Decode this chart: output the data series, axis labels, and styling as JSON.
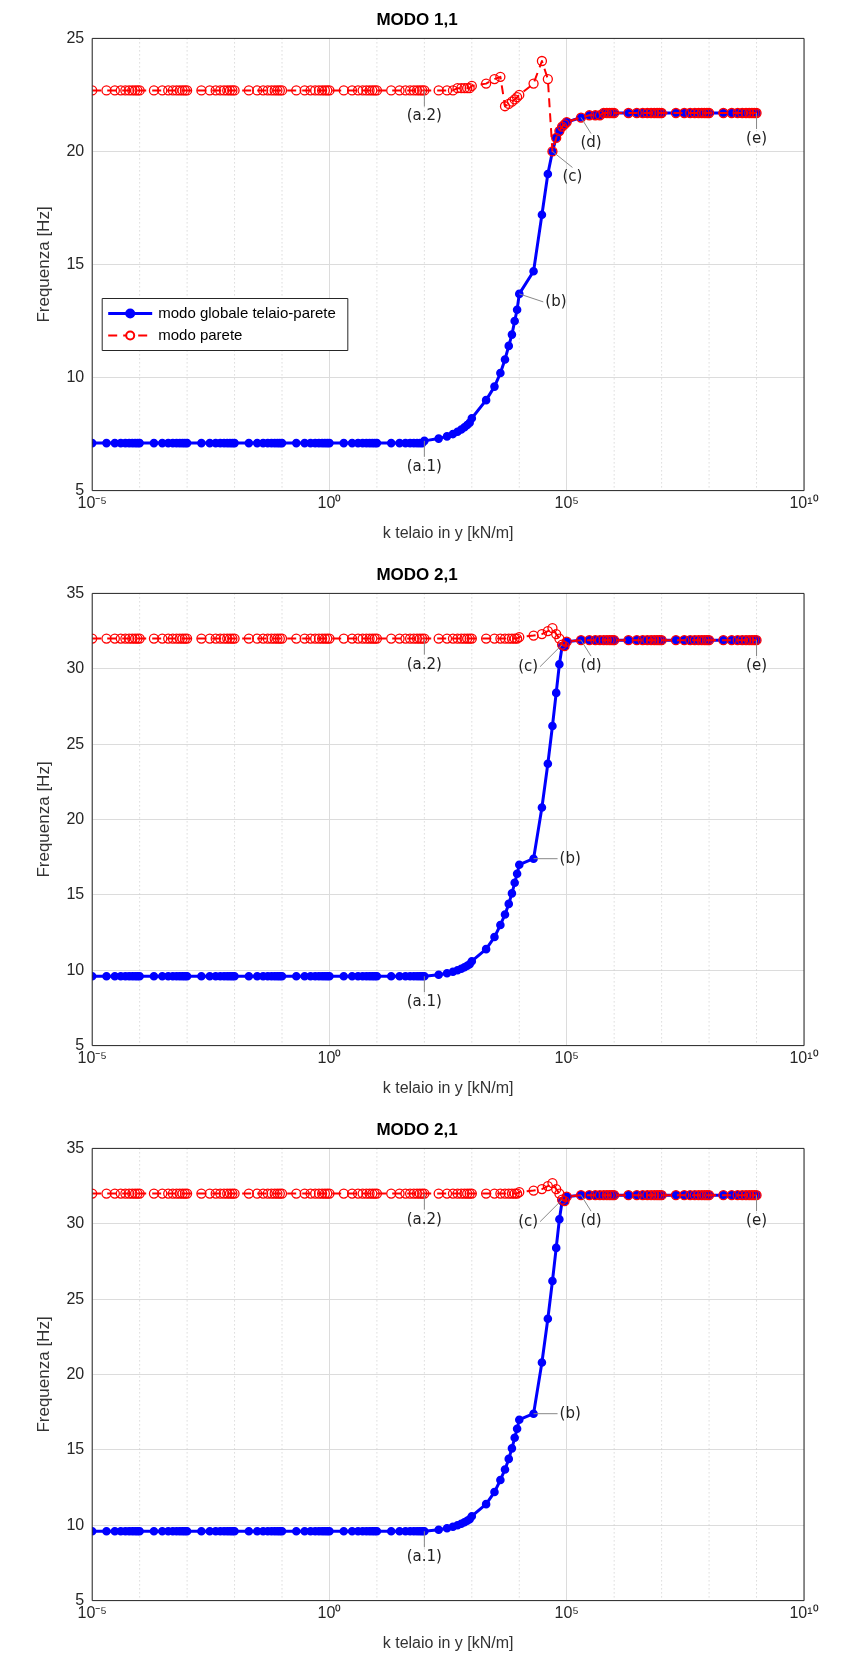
{
  "chart_data": [
    {
      "type": "line",
      "title": "MODO 1,1",
      "xlabel": "k telaio in y [kN/m]",
      "ylabel": "Frequenza [Hz]",
      "log": "x",
      "grid": true,
      "legend": "left",
      "marker": "circle",
      "xlim": [
        1e-05,
        10000000000.0
      ],
      "ylim": [
        5,
        25
      ],
      "xticks": [
        {
          "value": 1e-05,
          "label": "10⁻⁵"
        },
        {
          "value": 0.0001,
          "label": null
        },
        {
          "value": 0.001,
          "label": null
        },
        {
          "value": 0.01,
          "label": null
        },
        {
          "value": 0.1,
          "label": null
        },
        {
          "value": 1,
          "label": "10⁰"
        },
        {
          "value": 10.0,
          "label": null
        },
        {
          "value": 100.0,
          "label": null
        },
        {
          "value": 1000.0,
          "label": null
        },
        {
          "value": 10000.0,
          "label": null
        },
        {
          "value": 100000.0,
          "label": "10⁵"
        },
        {
          "value": 1000000.0,
          "label": null
        },
        {
          "value": 10000000.0,
          "label": null
        },
        {
          "value": 100000000.0,
          "label": null
        },
        {
          "value": 1000000000.0,
          "label": null
        },
        {
          "value": 10000000000.0,
          "label": "10¹⁰"
        }
      ],
      "yticks": [
        5,
        10,
        15,
        20,
        25
      ],
      "x": [
        1e-05,
        2e-05,
        3e-05,
        4e-05,
        5e-05,
        6e-05,
        7e-05,
        8e-05,
        9e-05,
        0.0001,
        0.0002,
        0.0003,
        0.0004,
        0.0005,
        0.0006,
        0.0007,
        0.0008,
        0.0009,
        0.001,
        0.002,
        0.003,
        0.004,
        0.005,
        0.006,
        0.007,
        0.008,
        0.009,
        0.01,
        0.02,
        0.03,
        0.04,
        0.05,
        0.06,
        0.07,
        0.08,
        0.09,
        0.1,
        0.2,
        0.3,
        0.4,
        0.5,
        0.6,
        0.7,
        0.8,
        0.9,
        1,
        2,
        3,
        4,
        5,
        6,
        7,
        8,
        9,
        10,
        20,
        30,
        40,
        50,
        60,
        70,
        80,
        90,
        100,
        200,
        300,
        400,
        500,
        600,
        700,
        800,
        900,
        1000.0,
        2000.0,
        3000.0,
        4000.0,
        5000.0,
        6000.0,
        7000.0,
        8000.0,
        9000.0,
        10000.0,
        20000.0,
        30000.0,
        40000.0,
        50000.0,
        60000.0,
        70000.0,
        80000.0,
        90000.0,
        100000.0,
        200000.0,
        300000.0,
        400000.0,
        500000.0,
        600000.0,
        700000.0,
        800000.0,
        900000.0,
        1000000.0,
        2000000.0,
        3000000.0,
        4000000.0,
        5000000.0,
        6000000.0,
        7000000.0,
        8000000.0,
        9000000.0,
        10000000.0,
        20000000.0,
        30000000.0,
        40000000.0,
        50000000.0,
        60000000.0,
        70000000.0,
        80000000.0,
        90000000.0,
        100000000.0,
        200000000.0,
        300000000.0,
        400000000.0,
        500000000.0,
        600000000.0,
        700000000.0,
        800000000.0,
        900000000.0,
        1000000000.0
      ],
      "series": [
        {
          "name": "modo globale telaio-parete",
          "color": "#0000ff",
          "line_style": "solid",
          "values": [
            7.1,
            7.1,
            7.1,
            7.1,
            7.1,
            7.1,
            7.1,
            7.1,
            7.1,
            7.1,
            7.1,
            7.1,
            7.1,
            7.1,
            7.1,
            7.1,
            7.1,
            7.1,
            7.1,
            7.1,
            7.1,
            7.1,
            7.1,
            7.1,
            7.1,
            7.1,
            7.1,
            7.1,
            7.1,
            7.1,
            7.1,
            7.1,
            7.1,
            7.1,
            7.1,
            7.1,
            7.1,
            7.1,
            7.1,
            7.1,
            7.1,
            7.1,
            7.1,
            7.1,
            7.1,
            7.1,
            7.1,
            7.1,
            7.1,
            7.1,
            7.1,
            7.1,
            7.1,
            7.1,
            7.1,
            7.1,
            7.1,
            7.1,
            7.1,
            7.1,
            7.1,
            7.1,
            7.1,
            7.2,
            7.3,
            7.4,
            7.5,
            7.6,
            7.7,
            7.8,
            7.9,
            8.0,
            8.2,
            9.0,
            9.6,
            10.2,
            10.8,
            11.4,
            11.9,
            12.5,
            13.0,
            13.7,
            14.7,
            17.2,
            19.0,
            20.0,
            20.6,
            20.9,
            21.1,
            21.2,
            21.3,
            21.5,
            21.6,
            21.6,
            21.6,
            21.7,
            21.7,
            21.7,
            21.7,
            21.7,
            21.7,
            21.7,
            21.7,
            21.7,
            21.7,
            21.7,
            21.7,
            21.7,
            21.7,
            21.7,
            21.7,
            21.7,
            21.7,
            21.7,
            21.7,
            21.7,
            21.7,
            21.7,
            21.7,
            21.7,
            21.7,
            21.7,
            21.7,
            21.7,
            21.7,
            21.7,
            21.7
          ]
        },
        {
          "name": "modo parete",
          "color": "#ff0000",
          "line_style": "dashed",
          "values": [
            22.7,
            22.7,
            22.7,
            22.7,
            22.7,
            22.7,
            22.7,
            22.7,
            22.7,
            22.7,
            22.7,
            22.7,
            22.7,
            22.7,
            22.7,
            22.7,
            22.7,
            22.7,
            22.7,
            22.7,
            22.7,
            22.7,
            22.7,
            22.7,
            22.7,
            22.7,
            22.7,
            22.7,
            22.7,
            22.7,
            22.7,
            22.7,
            22.7,
            22.7,
            22.7,
            22.7,
            22.7,
            22.7,
            22.7,
            22.7,
            22.7,
            22.7,
            22.7,
            22.7,
            22.7,
            22.7,
            22.7,
            22.7,
            22.7,
            22.7,
            22.7,
            22.7,
            22.7,
            22.7,
            22.7,
            22.7,
            22.7,
            22.7,
            22.7,
            22.7,
            22.7,
            22.7,
            22.7,
            22.7,
            22.7,
            22.7,
            22.7,
            22.8,
            22.8,
            22.8,
            22.8,
            22.8,
            22.9,
            23.0,
            23.2,
            23.3,
            22.0,
            22.1,
            22.2,
            22.3,
            22.4,
            22.5,
            23.0,
            24.0,
            23.2,
            20.0,
            20.6,
            20.9,
            21.1,
            21.2,
            21.3,
            21.5,
            21.6,
            21.6,
            21.6,
            21.7,
            21.7,
            21.7,
            21.7,
            21.7,
            21.7,
            21.7,
            21.7,
            21.7,
            21.7,
            21.7,
            21.7,
            21.7,
            21.7,
            21.7,
            21.7,
            21.7,
            21.7,
            21.7,
            21.7,
            21.7,
            21.7,
            21.7,
            21.7,
            21.7,
            21.7,
            21.7,
            21.7,
            21.7,
            21.7,
            21.7,
            21.7
          ]
        }
      ],
      "annotations": [
        {
          "text": "(a.1)",
          "x": 100,
          "y": 7.2
        },
        {
          "text": "(a.2)",
          "x": 100,
          "y": 22.7
        },
        {
          "text": "(b)",
          "x": 10000.0,
          "y": 13.7
        },
        {
          "text": "(c)",
          "x": 50000.0,
          "y": 20.0
        },
        {
          "text": "(d)",
          "x": 200000.0,
          "y": 21.5
        },
        {
          "text": "(e)",
          "x": 1000000000.0,
          "y": 21.7
        }
      ]
    },
    {
      "type": "line",
      "title": "MODO 2,1",
      "xlabel": "k telaio in y [kN/m]",
      "ylabel": "Frequenza [Hz]",
      "log": "x",
      "grid": true,
      "marker": "circle",
      "xlim": [
        1e-05,
        10000000000.0
      ],
      "ylim": [
        5,
        35
      ],
      "xticks": [
        {
          "value": 1e-05,
          "label": "10⁻⁵"
        },
        {
          "value": 0.0001,
          "label": null
        },
        {
          "value": 0.001,
          "label": null
        },
        {
          "value": 0.01,
          "label": null
        },
        {
          "value": 0.1,
          "label": null
        },
        {
          "value": 1,
          "label": "10⁰"
        },
        {
          "value": 10.0,
          "label": null
        },
        {
          "value": 100.0,
          "label": null
        },
        {
          "value": 1000.0,
          "label": null
        },
        {
          "value": 10000.0,
          "label": null
        },
        {
          "value": 100000.0,
          "label": "10⁵"
        },
        {
          "value": 1000000.0,
          "label": null
        },
        {
          "value": 10000000.0,
          "label": null
        },
        {
          "value": 100000000.0,
          "label": null
        },
        {
          "value": 1000000000.0,
          "label": null
        },
        {
          "value": 10000000000.0,
          "label": "10¹⁰"
        }
      ],
      "yticks": [
        5,
        10,
        15,
        20,
        25,
        30,
        35
      ],
      "x": [
        1e-05,
        2e-05,
        3e-05,
        4e-05,
        5e-05,
        6e-05,
        7e-05,
        8e-05,
        9e-05,
        0.0001,
        0.0002,
        0.0003,
        0.0004,
        0.0005,
        0.0006,
        0.0007,
        0.0008,
        0.0009,
        0.001,
        0.002,
        0.003,
        0.004,
        0.005,
        0.006,
        0.007,
        0.008,
        0.009,
        0.01,
        0.02,
        0.03,
        0.04,
        0.05,
        0.06,
        0.07,
        0.08,
        0.09,
        0.1,
        0.2,
        0.3,
        0.4,
        0.5,
        0.6,
        0.7,
        0.8,
        0.9,
        1,
        2,
        3,
        4,
        5,
        6,
        7,
        8,
        9,
        10,
        20,
        30,
        40,
        50,
        60,
        70,
        80,
        90,
        100,
        200,
        300,
        400,
        500,
        600,
        700,
        800,
        900,
        1000.0,
        2000.0,
        3000.0,
        4000.0,
        5000.0,
        6000.0,
        7000.0,
        8000.0,
        9000.0,
        10000.0,
        20000.0,
        30000.0,
        40000.0,
        50000.0,
        60000.0,
        70000.0,
        80000.0,
        90000.0,
        100000.0,
        200000.0,
        300000.0,
        400000.0,
        500000.0,
        600000.0,
        700000.0,
        800000.0,
        900000.0,
        1000000.0,
        2000000.0,
        3000000.0,
        4000000.0,
        5000000.0,
        6000000.0,
        7000000.0,
        8000000.0,
        9000000.0,
        10000000.0,
        20000000.0,
        30000000.0,
        40000000.0,
        50000000.0,
        60000000.0,
        70000000.0,
        80000000.0,
        90000000.0,
        100000000.0,
        200000000.0,
        300000000.0,
        400000000.0,
        500000000.0,
        600000000.0,
        700000000.0,
        800000000.0,
        900000000.0,
        1000000000.0
      ],
      "series": [
        {
          "color": "#0000ff",
          "line_style": "solid",
          "values": [
            9.6,
            9.6,
            9.6,
            9.6,
            9.6,
            9.6,
            9.6,
            9.6,
            9.6,
            9.6,
            9.6,
            9.6,
            9.6,
            9.6,
            9.6,
            9.6,
            9.6,
            9.6,
            9.6,
            9.6,
            9.6,
            9.6,
            9.6,
            9.6,
            9.6,
            9.6,
            9.6,
            9.6,
            9.6,
            9.6,
            9.6,
            9.6,
            9.6,
            9.6,
            9.6,
            9.6,
            9.6,
            9.6,
            9.6,
            9.6,
            9.6,
            9.6,
            9.6,
            9.6,
            9.6,
            9.6,
            9.6,
            9.6,
            9.6,
            9.6,
            9.6,
            9.6,
            9.6,
            9.6,
            9.6,
            9.6,
            9.6,
            9.6,
            9.6,
            9.6,
            9.6,
            9.6,
            9.6,
            9.6,
            9.7,
            9.8,
            9.9,
            10.0,
            10.1,
            10.2,
            10.3,
            10.4,
            10.6,
            11.4,
            12.2,
            13.0,
            13.7,
            14.4,
            15.1,
            15.8,
            16.4,
            17.0,
            17.4,
            20.8,
            23.7,
            26.2,
            28.4,
            30.3,
            31.5,
            31.5,
            31.8,
            31.9,
            31.9,
            31.9,
            31.9,
            31.9,
            31.9,
            31.9,
            31.9,
            31.9,
            31.9,
            31.9,
            31.9,
            31.9,
            31.9,
            31.9,
            31.9,
            31.9,
            31.9,
            31.9,
            31.9,
            31.9,
            31.9,
            31.9,
            31.9,
            31.9,
            31.9,
            31.9,
            31.9,
            31.9,
            31.9,
            31.9,
            31.9,
            31.9,
            31.9,
            31.9,
            31.9
          ]
        },
        {
          "color": "#ff0000",
          "line_style": "dashed",
          "values": [
            32.0,
            32.0,
            32.0,
            32.0,
            32.0,
            32.0,
            32.0,
            32.0,
            32.0,
            32.0,
            32.0,
            32.0,
            32.0,
            32.0,
            32.0,
            32.0,
            32.0,
            32.0,
            32.0,
            32.0,
            32.0,
            32.0,
            32.0,
            32.0,
            32.0,
            32.0,
            32.0,
            32.0,
            32.0,
            32.0,
            32.0,
            32.0,
            32.0,
            32.0,
            32.0,
            32.0,
            32.0,
            32.0,
            32.0,
            32.0,
            32.0,
            32.0,
            32.0,
            32.0,
            32.0,
            32.0,
            32.0,
            32.0,
            32.0,
            32.0,
            32.0,
            32.0,
            32.0,
            32.0,
            32.0,
            32.0,
            32.0,
            32.0,
            32.0,
            32.0,
            32.0,
            32.0,
            32.0,
            32.0,
            32.0,
            32.0,
            32.0,
            32.0,
            32.0,
            32.0,
            32.0,
            32.0,
            32.0,
            32.0,
            32.0,
            32.0,
            32.0,
            32.0,
            32.0,
            32.0,
            32.0,
            32.1,
            32.2,
            32.3,
            32.5,
            32.7,
            32.3,
            32.0,
            31.6,
            31.5,
            31.8,
            31.9,
            31.9,
            31.9,
            31.9,
            31.9,
            31.9,
            31.9,
            31.9,
            31.9,
            31.9,
            31.9,
            31.9,
            31.9,
            31.9,
            31.9,
            31.9,
            31.9,
            31.9,
            31.9,
            31.9,
            31.9,
            31.9,
            31.9,
            31.9,
            31.9,
            31.9,
            31.9,
            31.9,
            31.9,
            31.9,
            31.9,
            31.9,
            31.9,
            31.9,
            31.9,
            31.9
          ]
        }
      ],
      "annotations": [
        {
          "text": "(a.1)",
          "x": 100,
          "y": 9.6
        },
        {
          "text": "(a.2)",
          "x": 100,
          "y": 32.0
        },
        {
          "text": "(b)",
          "x": 20000.0,
          "y": 17.4
        },
        {
          "text": "(c)",
          "x": 80000.0,
          "y": 31.6
        },
        {
          "text": "(d)",
          "x": 200000.0,
          "y": 31.9
        },
        {
          "text": "(e)",
          "x": 1000000000.0,
          "y": 31.9
        }
      ]
    },
    {
      "type": "line",
      "title": "MODO 2,1",
      "xlabel": "k telaio in y [kN/m]",
      "ylabel": "Frequenza [Hz]",
      "log": "x",
      "grid": true,
      "marker": "circle",
      "xlim": [
        1e-05,
        10000000000.0
      ],
      "ylim": [
        5,
        35
      ],
      "xticks": [
        {
          "value": 1e-05,
          "label": "10⁻⁵"
        },
        {
          "value": 0.0001,
          "label": null
        },
        {
          "value": 0.001,
          "label": null
        },
        {
          "value": 0.01,
          "label": null
        },
        {
          "value": 0.1,
          "label": null
        },
        {
          "value": 1,
          "label": "10⁰"
        },
        {
          "value": 10.0,
          "label": null
        },
        {
          "value": 100.0,
          "label": null
        },
        {
          "value": 1000.0,
          "label": null
        },
        {
          "value": 10000.0,
          "label": null
        },
        {
          "value": 100000.0,
          "label": "10⁵"
        },
        {
          "value": 1000000.0,
          "label": null
        },
        {
          "value": 10000000.0,
          "label": null
        },
        {
          "value": 100000000.0,
          "label": null
        },
        {
          "value": 1000000000.0,
          "label": null
        },
        {
          "value": 10000000000.0,
          "label": "10¹⁰"
        }
      ],
      "yticks": [
        5,
        10,
        15,
        20,
        25,
        30,
        35
      ],
      "x": [
        1e-05,
        2e-05,
        3e-05,
        4e-05,
        5e-05,
        6e-05,
        7e-05,
        8e-05,
        9e-05,
        0.0001,
        0.0002,
        0.0003,
        0.0004,
        0.0005,
        0.0006,
        0.0007,
        0.0008,
        0.0009,
        0.001,
        0.002,
        0.003,
        0.004,
        0.005,
        0.006,
        0.007,
        0.008,
        0.009,
        0.01,
        0.02,
        0.03,
        0.04,
        0.05,
        0.06,
        0.07,
        0.08,
        0.09,
        0.1,
        0.2,
        0.3,
        0.4,
        0.5,
        0.6,
        0.7,
        0.8,
        0.9,
        1,
        2,
        3,
        4,
        5,
        6,
        7,
        8,
        9,
        10,
        20,
        30,
        40,
        50,
        60,
        70,
        80,
        90,
        100,
        200,
        300,
        400,
        500,
        600,
        700,
        800,
        900,
        1000.0,
        2000.0,
        3000.0,
        4000.0,
        5000.0,
        6000.0,
        7000.0,
        8000.0,
        9000.0,
        10000.0,
        20000.0,
        30000.0,
        40000.0,
        50000.0,
        60000.0,
        70000.0,
        80000.0,
        90000.0,
        100000.0,
        200000.0,
        300000.0,
        400000.0,
        500000.0,
        600000.0,
        700000.0,
        800000.0,
        900000.0,
        1000000.0,
        2000000.0,
        3000000.0,
        4000000.0,
        5000000.0,
        6000000.0,
        7000000.0,
        8000000.0,
        9000000.0,
        10000000.0,
        20000000.0,
        30000000.0,
        40000000.0,
        50000000.0,
        60000000.0,
        70000000.0,
        80000000.0,
        90000000.0,
        100000000.0,
        200000000.0,
        300000000.0,
        400000000.0,
        500000000.0,
        600000000.0,
        700000000.0,
        800000000.0,
        900000000.0,
        1000000000.0
      ],
      "series": [
        {
          "color": "#0000ff",
          "line_style": "solid",
          "values": [
            9.6,
            9.6,
            9.6,
            9.6,
            9.6,
            9.6,
            9.6,
            9.6,
            9.6,
            9.6,
            9.6,
            9.6,
            9.6,
            9.6,
            9.6,
            9.6,
            9.6,
            9.6,
            9.6,
            9.6,
            9.6,
            9.6,
            9.6,
            9.6,
            9.6,
            9.6,
            9.6,
            9.6,
            9.6,
            9.6,
            9.6,
            9.6,
            9.6,
            9.6,
            9.6,
            9.6,
            9.6,
            9.6,
            9.6,
            9.6,
            9.6,
            9.6,
            9.6,
            9.6,
            9.6,
            9.6,
            9.6,
            9.6,
            9.6,
            9.6,
            9.6,
            9.6,
            9.6,
            9.6,
            9.6,
            9.6,
            9.6,
            9.6,
            9.6,
            9.6,
            9.6,
            9.6,
            9.6,
            9.6,
            9.7,
            9.8,
            9.9,
            10.0,
            10.1,
            10.2,
            10.3,
            10.4,
            10.6,
            11.4,
            12.2,
            13.0,
            13.7,
            14.4,
            15.1,
            15.8,
            16.4,
            17.0,
            17.4,
            20.8,
            23.7,
            26.2,
            28.4,
            30.3,
            31.5,
            31.5,
            31.8,
            31.9,
            31.9,
            31.9,
            31.9,
            31.9,
            31.9,
            31.9,
            31.9,
            31.9,
            31.9,
            31.9,
            31.9,
            31.9,
            31.9,
            31.9,
            31.9,
            31.9,
            31.9,
            31.9,
            31.9,
            31.9,
            31.9,
            31.9,
            31.9,
            31.9,
            31.9,
            31.9,
            31.9,
            31.9,
            31.9,
            31.9,
            31.9,
            31.9,
            31.9,
            31.9,
            31.9
          ]
        },
        {
          "color": "#ff0000",
          "line_style": "dashed",
          "values": [
            32.0,
            32.0,
            32.0,
            32.0,
            32.0,
            32.0,
            32.0,
            32.0,
            32.0,
            32.0,
            32.0,
            32.0,
            32.0,
            32.0,
            32.0,
            32.0,
            32.0,
            32.0,
            32.0,
            32.0,
            32.0,
            32.0,
            32.0,
            32.0,
            32.0,
            32.0,
            32.0,
            32.0,
            32.0,
            32.0,
            32.0,
            32.0,
            32.0,
            32.0,
            32.0,
            32.0,
            32.0,
            32.0,
            32.0,
            32.0,
            32.0,
            32.0,
            32.0,
            32.0,
            32.0,
            32.0,
            32.0,
            32.0,
            32.0,
            32.0,
            32.0,
            32.0,
            32.0,
            32.0,
            32.0,
            32.0,
            32.0,
            32.0,
            32.0,
            32.0,
            32.0,
            32.0,
            32.0,
            32.0,
            32.0,
            32.0,
            32.0,
            32.0,
            32.0,
            32.0,
            32.0,
            32.0,
            32.0,
            32.0,
            32.0,
            32.0,
            32.0,
            32.0,
            32.0,
            32.0,
            32.0,
            32.1,
            32.2,
            32.3,
            32.5,
            32.7,
            32.3,
            32.0,
            31.6,
            31.5,
            31.8,
            31.9,
            31.9,
            31.9,
            31.9,
            31.9,
            31.9,
            31.9,
            31.9,
            31.9,
            31.9,
            31.9,
            31.9,
            31.9,
            31.9,
            31.9,
            31.9,
            31.9,
            31.9,
            31.9,
            31.9,
            31.9,
            31.9,
            31.9,
            31.9,
            31.9,
            31.9,
            31.9,
            31.9,
            31.9,
            31.9,
            31.9,
            31.9,
            31.9,
            31.9,
            31.9,
            31.9
          ]
        }
      ],
      "annotations": [
        {
          "text": "(a.1)",
          "x": 100,
          "y": 9.6
        },
        {
          "text": "(a.2)",
          "x": 100,
          "y": 32.0
        },
        {
          "text": "(b)",
          "x": 20000.0,
          "y": 17.4
        },
        {
          "text": "(c)",
          "x": 80000.0,
          "y": 31.6
        },
        {
          "text": "(d)",
          "x": 200000.0,
          "y": 31.9
        },
        {
          "text": "(e)",
          "x": 1000000000.0,
          "y": 31.9
        }
      ]
    }
  ]
}
